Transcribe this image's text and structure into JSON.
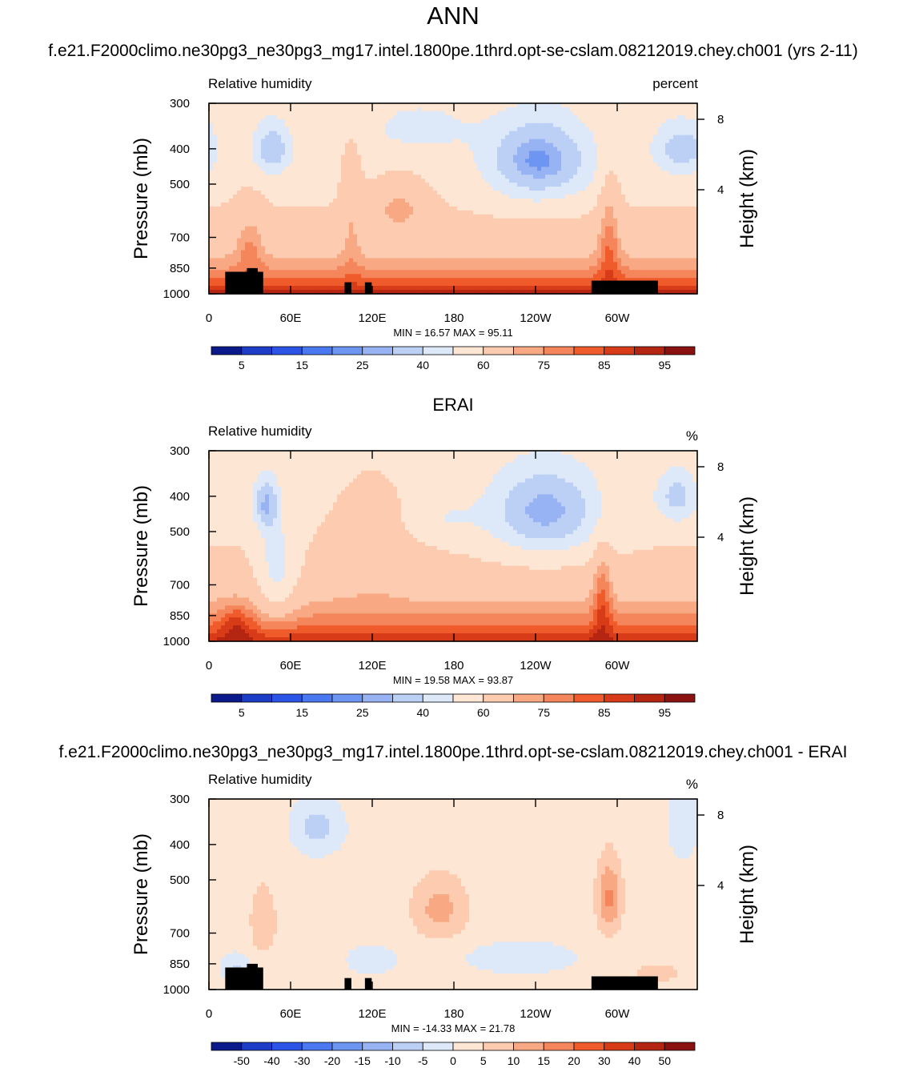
{
  "figure": {
    "title": "ANN"
  },
  "colors": {
    "labelbar_levels": 16,
    "labelbar_colors": [
      "#0a1a8a",
      "#1d3cc8",
      "#2c55e8",
      "#4a78f0",
      "#6d95f2",
      "#97b3f3",
      "#bcd0f6",
      "#dde9f8",
      "#fde6d4",
      "#fccbb0",
      "#f8a983",
      "#f5865c",
      "#ef5b2b",
      "#d83b17",
      "#b42512",
      "#8a1210"
    ]
  },
  "chart_data": [
    {
      "type": "heatmap",
      "title": "f.e21.F2000climo.ne30pg3_ne30pg3_mg17.intel.1800pe.1thrd.opt-se-cslam.08212019.chey.ch001 (yrs 2-11)",
      "left_label": "Relative humidity",
      "right_label": "percent",
      "ylabel": "Pressure (mb)",
      "y2label": "Height (km)",
      "x_ticks": [
        "0",
        "60E",
        "120E",
        "180",
        "120W",
        "60W"
      ],
      "y_ticks": [
        "300",
        "400",
        "500",
        "700",
        "850",
        "1000"
      ],
      "y2_ticks": [
        "8",
        "4"
      ],
      "stats": "MIN =  16.57  MAX =  95.11",
      "colorbar_labels": [
        "5",
        "15",
        "25",
        "40",
        "60",
        "75",
        "85",
        "95"
      ],
      "min": 16.57,
      "max": 95.11,
      "xlim": [
        0,
        360
      ],
      "ylim": [
        1000,
        300
      ]
    },
    {
      "type": "heatmap",
      "title": "ERAI",
      "left_label": "Relative humidity",
      "right_label": "%",
      "ylabel": "Pressure (mb)",
      "y2label": "Height (km)",
      "x_ticks": [
        "0",
        "60E",
        "120E",
        "180",
        "120W",
        "60W"
      ],
      "y_ticks": [
        "300",
        "400",
        "500",
        "700",
        "850",
        "1000"
      ],
      "y2_ticks": [
        "8",
        "4"
      ],
      "stats": "MIN =  19.58  MAX =  93.87",
      "colorbar_labels": [
        "5",
        "15",
        "25",
        "40",
        "60",
        "75",
        "85",
        "95"
      ],
      "min": 19.58,
      "max": 93.87,
      "xlim": [
        0,
        360
      ],
      "ylim": [
        1000,
        300
      ]
    },
    {
      "type": "heatmap",
      "title": "f.e21.F2000climo.ne30pg3_ne30pg3_mg17.intel.1800pe.1thrd.opt-se-cslam.08212019.chey.ch001 - ERAI",
      "left_label": "Relative humidity",
      "right_label": "%",
      "ylabel": "Pressure (mb)",
      "y2label": "Height (km)",
      "x_ticks": [
        "0",
        "60E",
        "120E",
        "180",
        "120W",
        "60W"
      ],
      "y_ticks": [
        "300",
        "400",
        "500",
        "700",
        "850",
        "1000"
      ],
      "y2_ticks": [
        "8",
        "4"
      ],
      "stats": "MIN = -14.33  MAX =  21.78",
      "colorbar_labels": [
        "-50",
        "-40",
        "-30",
        "-20",
        "-15",
        "-10",
        "-5",
        "0",
        "5",
        "10",
        "15",
        "20",
        "30",
        "40",
        "50"
      ],
      "min": -14.33,
      "max": 21.78,
      "xlim": [
        0,
        360
      ],
      "ylim": [
        1000,
        300
      ]
    }
  ]
}
